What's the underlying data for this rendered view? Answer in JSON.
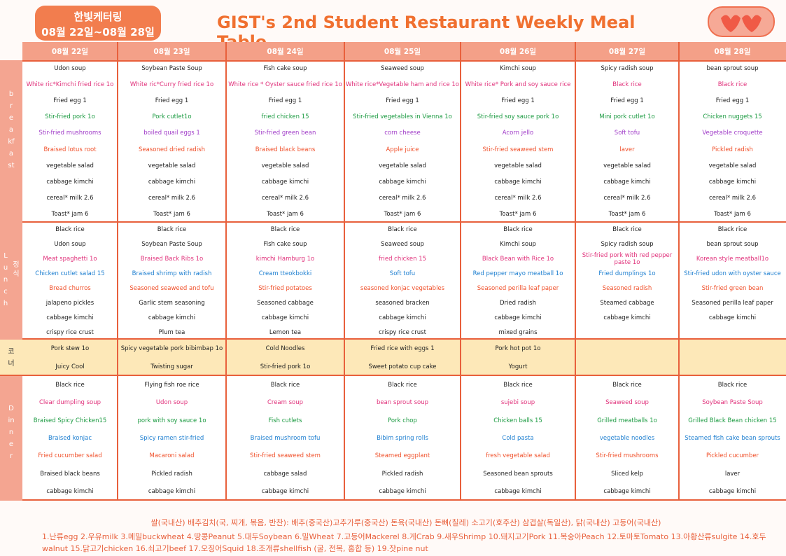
{
  "header": {
    "caterer": "한빛케터링",
    "period": "08월 22일~08월 28일",
    "title": "GIST's 2nd Student Restaurant Weekly Meal Table"
  },
  "days": [
    "08월 22일",
    "08월 23일",
    "08월 24일",
    "08월 25일",
    "08월 26일",
    "08월 27일",
    "08월 28일"
  ],
  "sections": [
    {
      "label": "breakfast",
      "background": "#ffffff",
      "row_colors": [
        "#222222",
        "#e0307a",
        "#222222",
        "#1a9a40",
        "#a03cc8",
        "#f0502a",
        "#222222",
        "#222222",
        "#222222",
        "#222222"
      ],
      "rows": [
        [
          "Udon soup",
          "Soybean Paste Soup",
          "Fish cake soup",
          "Seaweed soup",
          "Kimchi soup",
          "Spicy radish soup",
          "bean sprout soup"
        ],
        [
          "White ric*Kimchi fried rice 1o",
          "White ric*Curry fried rice 1o",
          "White rice * Oyster sauce fried rice 1o",
          "White rice*Vegetable ham and rice 1o",
          "White rice* Pork and soy sauce rice",
          "Black rice",
          "Black rice"
        ],
        [
          "Fried egg 1",
          "Fried egg 1",
          "Fried egg 1",
          "Fried egg 1",
          "Fried egg 1",
          "Fried egg 1",
          "Fried egg 1"
        ],
        [
          "Stir-fried pork 1o",
          "Pork cutlet1o",
          "fried chicken 15",
          "Stir-fried vegetables in Vienna 1o",
          "Stir-fried soy sauce pork 1o",
          "Mini pork cutlet 1o",
          "Chicken nuggets 15"
        ],
        [
          "Stir-fried mushrooms",
          "boiled quail eggs 1",
          "Stir-fried green bean",
          "corn cheese",
          "Acorn jello",
          "Soft tofu",
          "Vegetable croquette"
        ],
        [
          "Braised lotus root",
          "Seasoned dried radish",
          "Braised black beans",
          "Apple juice",
          "Stir-fried seaweed stem",
          "laver",
          "Pickled radish"
        ],
        [
          "vegetable salad",
          "vegetable salad",
          "vegetable salad",
          "vegetable salad",
          "vegetable salad",
          "vegetable salad",
          "vegetable salad"
        ],
        [
          "cabbage kimchi",
          "cabbage kimchi",
          "cabbage kimchi",
          "cabbage kimchi",
          "cabbage kimchi",
          "cabbage kimchi",
          "cabbage kimchi"
        ],
        [
          "cereal* milk 2.6",
          "cereal* milk 2.6",
          "cereal* milk 2.6",
          "cereal* milk 2.6",
          "cereal* milk 2.6",
          "cereal* milk 2.6",
          "cereal* milk 2.6"
        ],
        [
          "Toast* jam 6",
          "Toast* jam 6",
          "Toast* jam 6",
          "Toast* jam 6",
          "Toast* jam 6",
          "Toast* jam 6",
          "Toast* jam 6"
        ]
      ]
    },
    {
      "label": "Lunch",
      "label2": "정식",
      "background": "#ffffff",
      "row_colors": [
        "#222222",
        "#222222",
        "#e0307a",
        "#1e7fd0",
        "#f0502a",
        "#222222",
        "#222222",
        "#222222"
      ],
      "rows": [
        [
          "Black rice",
          "Black rice",
          "Black rice",
          "Black rice",
          "Black rice",
          "Black rice",
          "Black rice"
        ],
        [
          "Udon soup",
          "Soybean Paste Soup",
          "Fish cake soup",
          "Seaweed soup",
          "Kimchi soup",
          "Spicy radish soup",
          "bean sprout soup"
        ],
        [
          "Meat spaghetti 1o",
          "Braised Back Ribs 1o",
          "kimchi Hamburg 1o",
          "fried chicken 15",
          "Black Bean with Rice 1o",
          "Stir-fried pork with red pepper paste 1o",
          "Korean style meatball1o"
        ],
        [
          "Chicken cutlet salad 15",
          "Braised shrimp with radish",
          "Cream tteokbokki",
          "Soft tofu",
          "Red pepper mayo meatball 1o",
          "Fried dumplings 1o",
          "Stir-fried udon with oyster sauce"
        ],
        [
          "Bread churros",
          "Seasoned seaweed and tofu",
          "Stir-fried potatoes",
          "seasoned konjac vegetables",
          "Seasoned perilla leaf paper",
          "Seasoned radish",
          "Stir-fried green bean"
        ],
        [
          "jalapeno pickles",
          "Garlic stem seasoning",
          "Seasoned cabbage",
          "seasoned bracken",
          "Dried radish",
          "Steamed cabbage",
          "Seasoned perilla leaf paper"
        ],
        [
          "cabbage kimchi",
          "cabbage kimchi",
          "cabbage kimchi",
          "cabbage kimchi",
          "cabbage kimchi",
          "cabbage kimchi",
          "cabbage kimchi"
        ],
        [
          "crispy rice crust",
          "Plum tea",
          "Lemon tea",
          "crispy rice crust",
          "mixed grains",
          null,
          null
        ]
      ]
    },
    {
      "label": "코너",
      "background": "#fde8b8",
      "row_colors": [
        "#222222",
        "#222222"
      ],
      "rows": [
        [
          "Pork stew 1o",
          "Spicy vegetable pork bibimbap 1o",
          "Cold Noodles",
          "Fried rice with eggs 1",
          "Pork hot pot 1o",
          null,
          null
        ],
        [
          "Juicy Cool",
          "Twisting sugar",
          "Stir-fried pork 1o",
          "Sweet potato cup cake",
          "Yogurt",
          null,
          null
        ]
      ]
    },
    {
      "label": "Dinner",
      "background": "#ffffff",
      "row_colors": [
        "#222222",
        "#e0307a",
        "#1a9a40",
        "#1e7fd0",
        "#f0502a",
        "#222222",
        "#222222"
      ],
      "rows": [
        [
          "Black rice",
          "Flying fish roe rice",
          "Black rice",
          "Black rice",
          "Black rice",
          "Black rice",
          "Black rice"
        ],
        [
          "Clear dumpling soup",
          "Udon soup",
          "Cream soup",
          "bean sprout soup",
          "sujebi soup",
          "Seaweed soup",
          "Soybean Paste Soup"
        ],
        [
          "Braised Spicy Chicken15",
          "pork with soy sauce 1o",
          "Fish cutlets",
          "Pork chop",
          "Chicken balls 15",
          "Grilled meatballs 1o",
          "Grilled Black Bean chicken 15"
        ],
        [
          "Braised konjac",
          "Spicy ramen stir-fried",
          "Braised mushroom tofu",
          "Bibim spring rolls",
          "Cold pasta",
          "vegetable noodles",
          "Steamed fish cake bean sprouts"
        ],
        [
          "Fried cucumber salad",
          "Macaroni salad",
          "Stir-fried seaweed stem",
          "Steamed eggplant",
          "fresh vegetable salad",
          "Stir-fried mushrooms",
          "Pickled cucumber"
        ],
        [
          "Braised black beans",
          "Pickled radish",
          "cabbage salad",
          "Pickled radish",
          "Seasoned bean sprouts",
          "Sliced kelp",
          "laver"
        ],
        [
          "cabbage kimchi",
          "cabbage kimchi",
          "cabbage kimchi",
          "cabbage kimchi",
          "cabbage kimchi",
          "cabbage kimchi",
          "cabbage kimchi"
        ]
      ]
    }
  ],
  "footer": {
    "origin": "쌀(국내산) 배추김치(국, 찌개, 볶음, 반찬): 배추(중국산)고추가루(중국산) 돈육(국내산) 돈뼈(칠레) 소고기(호주산) 삼겹살(독일산), 닭(국내산) 고등어(국내산)",
    "allergens": "1.난류egg 2.우유milk 3.메밀buckwheat 4.땅콩Peanut 5.대두Soybean 6.밀Wheat 7.고등어Mackerel 8.게Crab 9.새우Shrimp 10.돼지고기Pork 11.복숭아Peach 12.토마토Tomato 13.아황산류sulgite 14.호두walnut 15.닭고기chicken 16.쇠고기beef 17.오징어Squid 18.조개류shellfish (굴, 전복, 홍합 등) 19.잣pine nut"
  }
}
